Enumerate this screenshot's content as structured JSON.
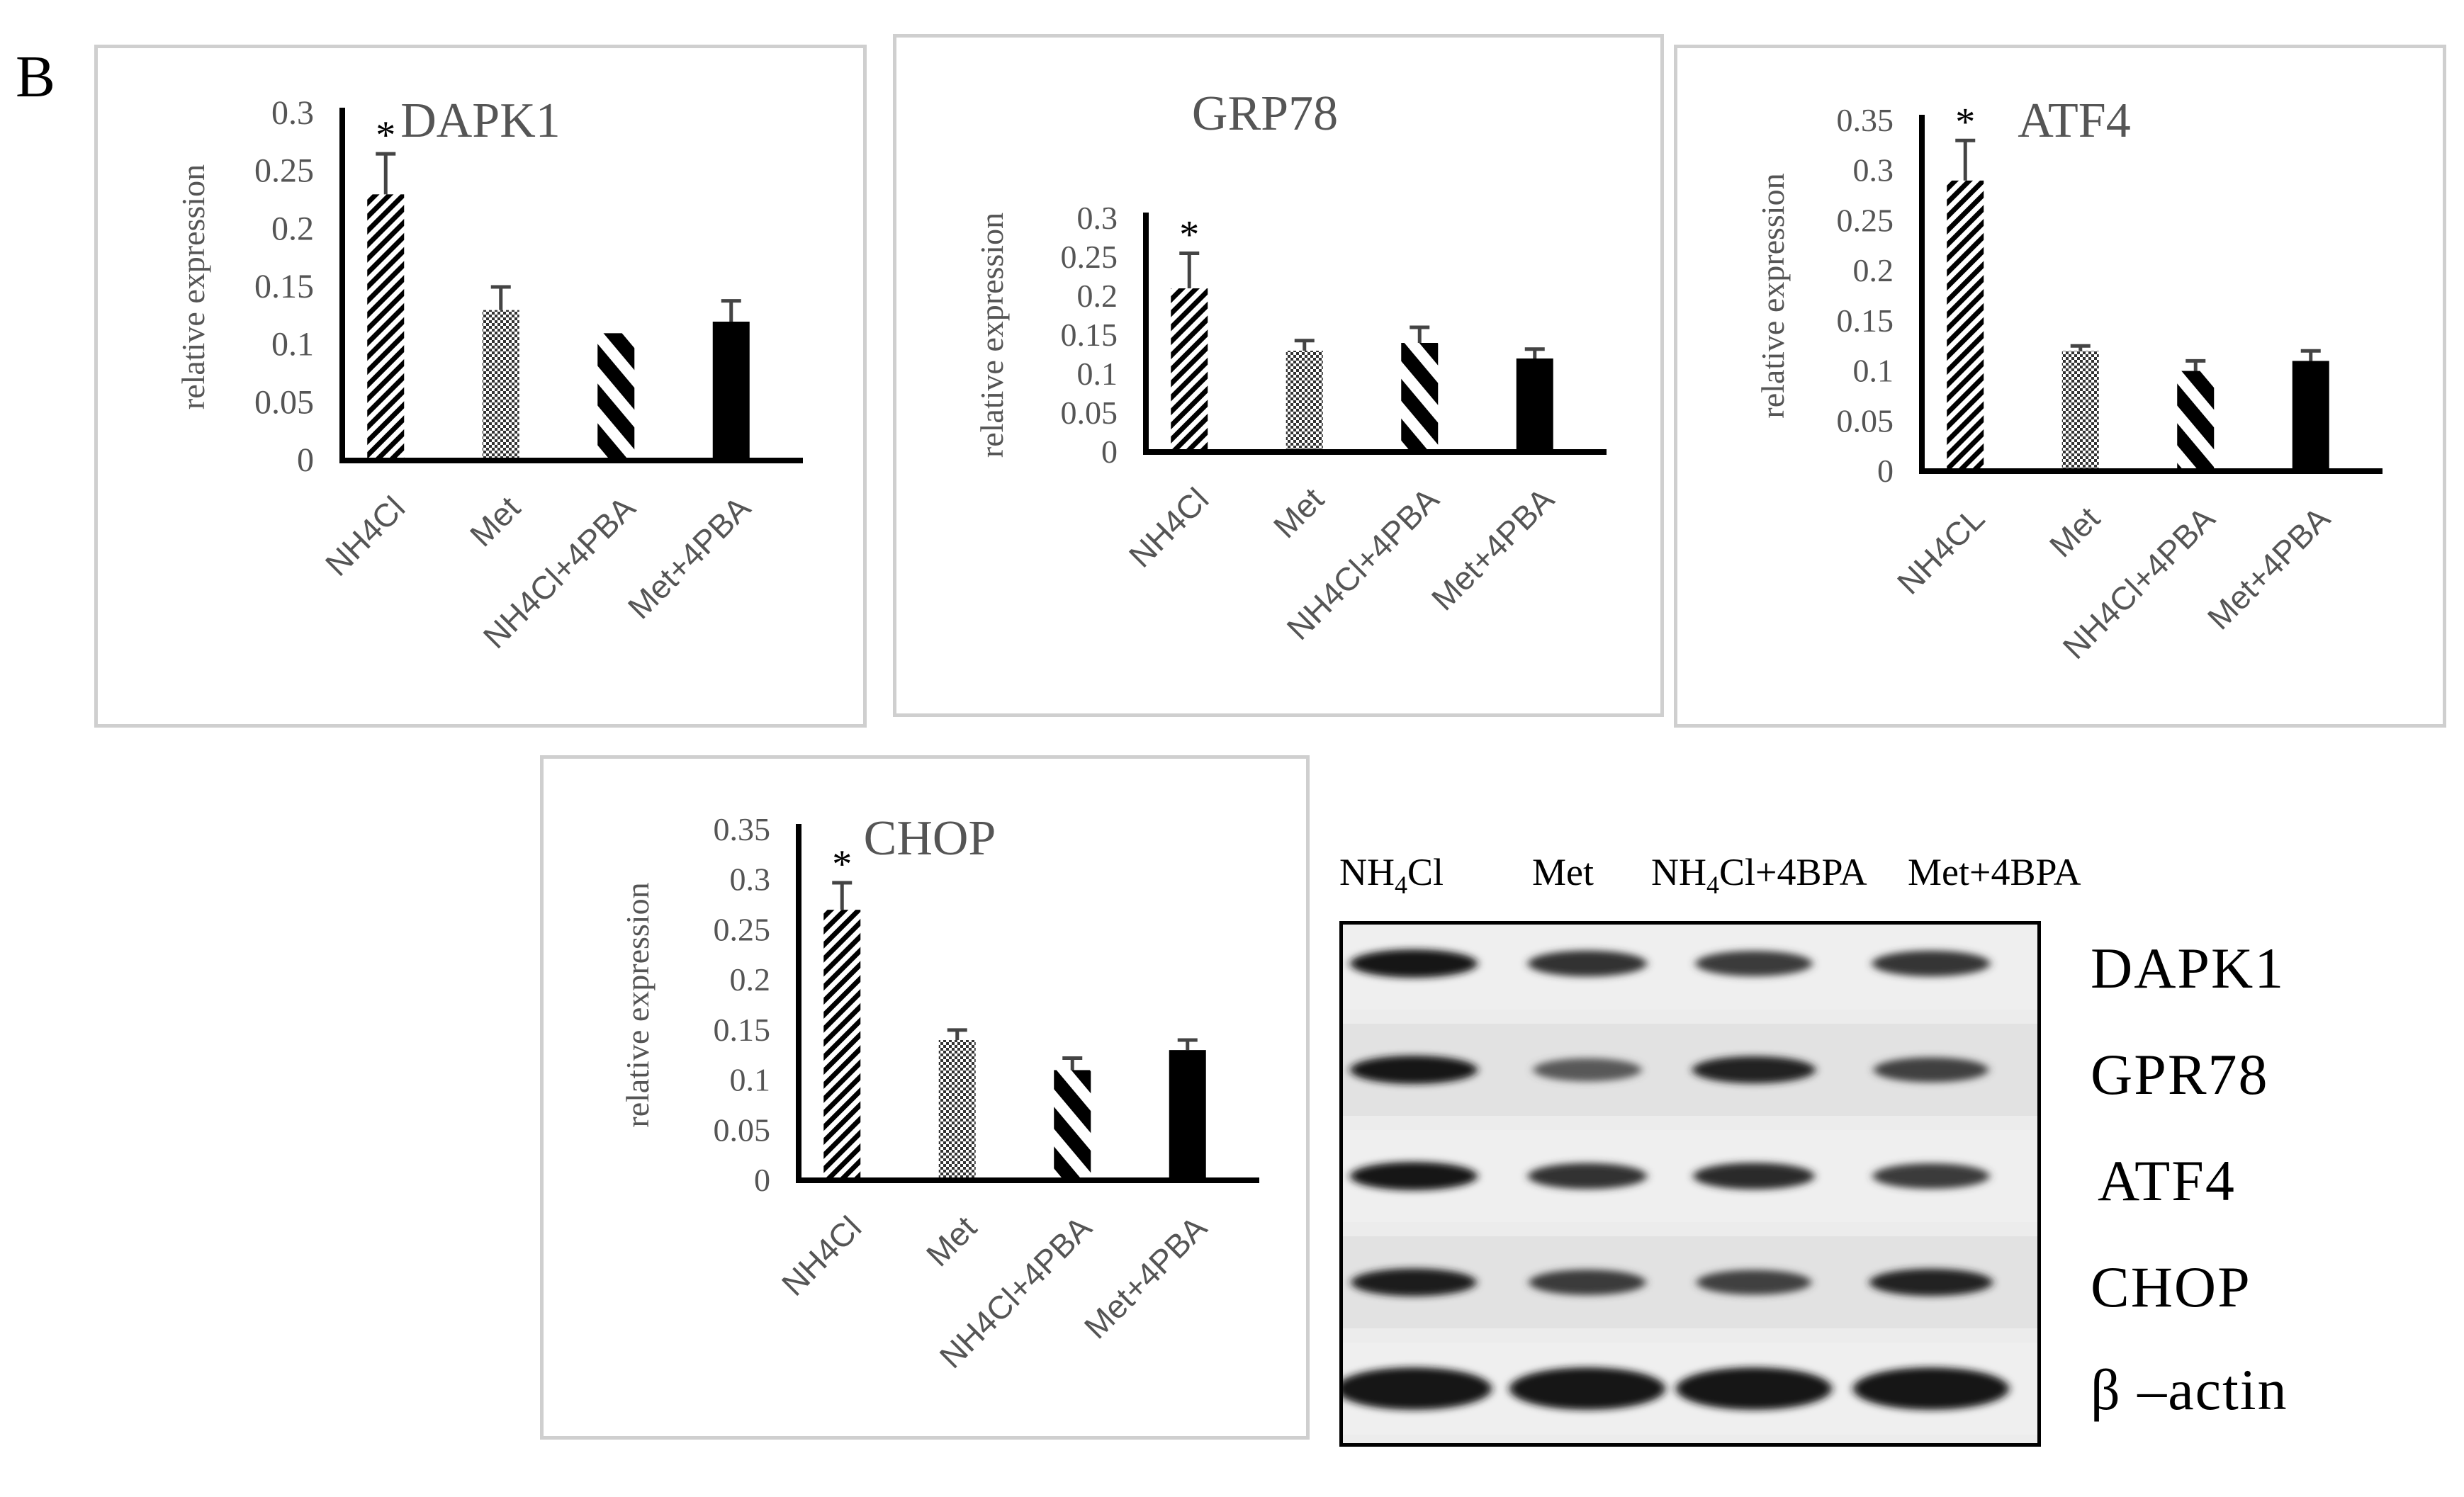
{
  "panel_letter": "B",
  "chart_data": [
    {
      "type": "bar",
      "title": "DAPK1",
      "ylabel": "relative expression",
      "categories": [
        "NH4Cl",
        "Met",
        "NH4Cl+4PBA",
        "Met+4PBA"
      ],
      "values": [
        0.23,
        0.13,
        0.11,
        0.12
      ],
      "errors": [
        0.035,
        0.02,
        0.0,
        0.018
      ],
      "significance": [
        "*",
        "",
        "",
        ""
      ],
      "ylim": [
        0,
        0.3
      ],
      "yticks": [
        "0",
        "0.05",
        "0.1",
        "0.15",
        "0.2",
        "0.25",
        "0.3"
      ],
      "patterns": [
        "diagonal-hatch",
        "checker",
        "wide-diagonal",
        "solid"
      ]
    },
    {
      "type": "bar",
      "title": "GRP78",
      "ylabel": "relative expression",
      "categories": [
        "NH4Cl",
        "Met",
        "NH4Cl+4PBA",
        "Met+4PBA"
      ],
      "values": [
        0.21,
        0.13,
        0.14,
        0.12
      ],
      "errors": [
        0.045,
        0.013,
        0.02,
        0.012
      ],
      "significance": [
        "*",
        "",
        "",
        ""
      ],
      "ylim": [
        0,
        0.3
      ],
      "yticks": [
        "0",
        "0.05",
        "0.1",
        "0.15",
        "0.2",
        "0.25",
        "0.3"
      ],
      "patterns": [
        "diagonal-hatch",
        "checker",
        "wide-diagonal",
        "solid"
      ]
    },
    {
      "type": "bar",
      "title": "ATF4",
      "ylabel": "relative expression",
      "categories": [
        "NH4CL",
        "Met",
        "NH4Cl+4PBA",
        "Met+4PBA"
      ],
      "values": [
        0.29,
        0.12,
        0.1,
        0.11
      ],
      "errors": [
        0.04,
        0.005,
        0.01,
        0.01
      ],
      "significance": [
        "*",
        "",
        "",
        ""
      ],
      "ylim": [
        0,
        0.35
      ],
      "yticks": [
        "0",
        "0.05",
        "0.1",
        "0.15",
        "0.2",
        "0.25",
        "0.3",
        "0.35"
      ],
      "patterns": [
        "diagonal-hatch",
        "checker",
        "wide-diagonal",
        "solid"
      ]
    },
    {
      "type": "bar",
      "title": "CHOP",
      "ylabel": "relative expression",
      "categories": [
        "NH4Cl",
        "Met",
        "NH4Cl+4PBA",
        "Met+4PBA"
      ],
      "values": [
        0.27,
        0.14,
        0.11,
        0.13
      ],
      "errors": [
        0.027,
        0.01,
        0.012,
        0.01
      ],
      "significance": [
        "*",
        "",
        "",
        ""
      ],
      "ylim": [
        0,
        0.35
      ],
      "yticks": [
        "0",
        "0.05",
        "0.1",
        "0.15",
        "0.2",
        "0.25",
        "0.3",
        "0.35"
      ],
      "patterns": [
        "diagonal-hatch",
        "checker",
        "wide-diagonal",
        "solid"
      ]
    }
  ],
  "blot": {
    "lanes": [
      {
        "base": "NH",
        "sub": "4",
        "rest": "Cl"
      },
      {
        "base": "Met",
        "sub": "",
        "rest": ""
      },
      {
        "base": "NH",
        "sub": "4",
        "rest": "Cl+4BPA"
      },
      {
        "base": "Met+4BPA",
        "sub": "",
        "rest": ""
      }
    ],
    "proteins": [
      "DAPK1",
      "GPR78",
      "ATF4",
      "CHOP",
      "β –actin"
    ],
    "band_intensity": [
      [
        1.0,
        0.8,
        0.75,
        0.78
      ],
      [
        1.0,
        0.55,
        0.9,
        0.7
      ],
      [
        1.0,
        0.8,
        0.85,
        0.75
      ],
      [
        0.95,
        0.75,
        0.7,
        0.9
      ],
      [
        1.0,
        1.0,
        1.0,
        1.0
      ]
    ]
  }
}
